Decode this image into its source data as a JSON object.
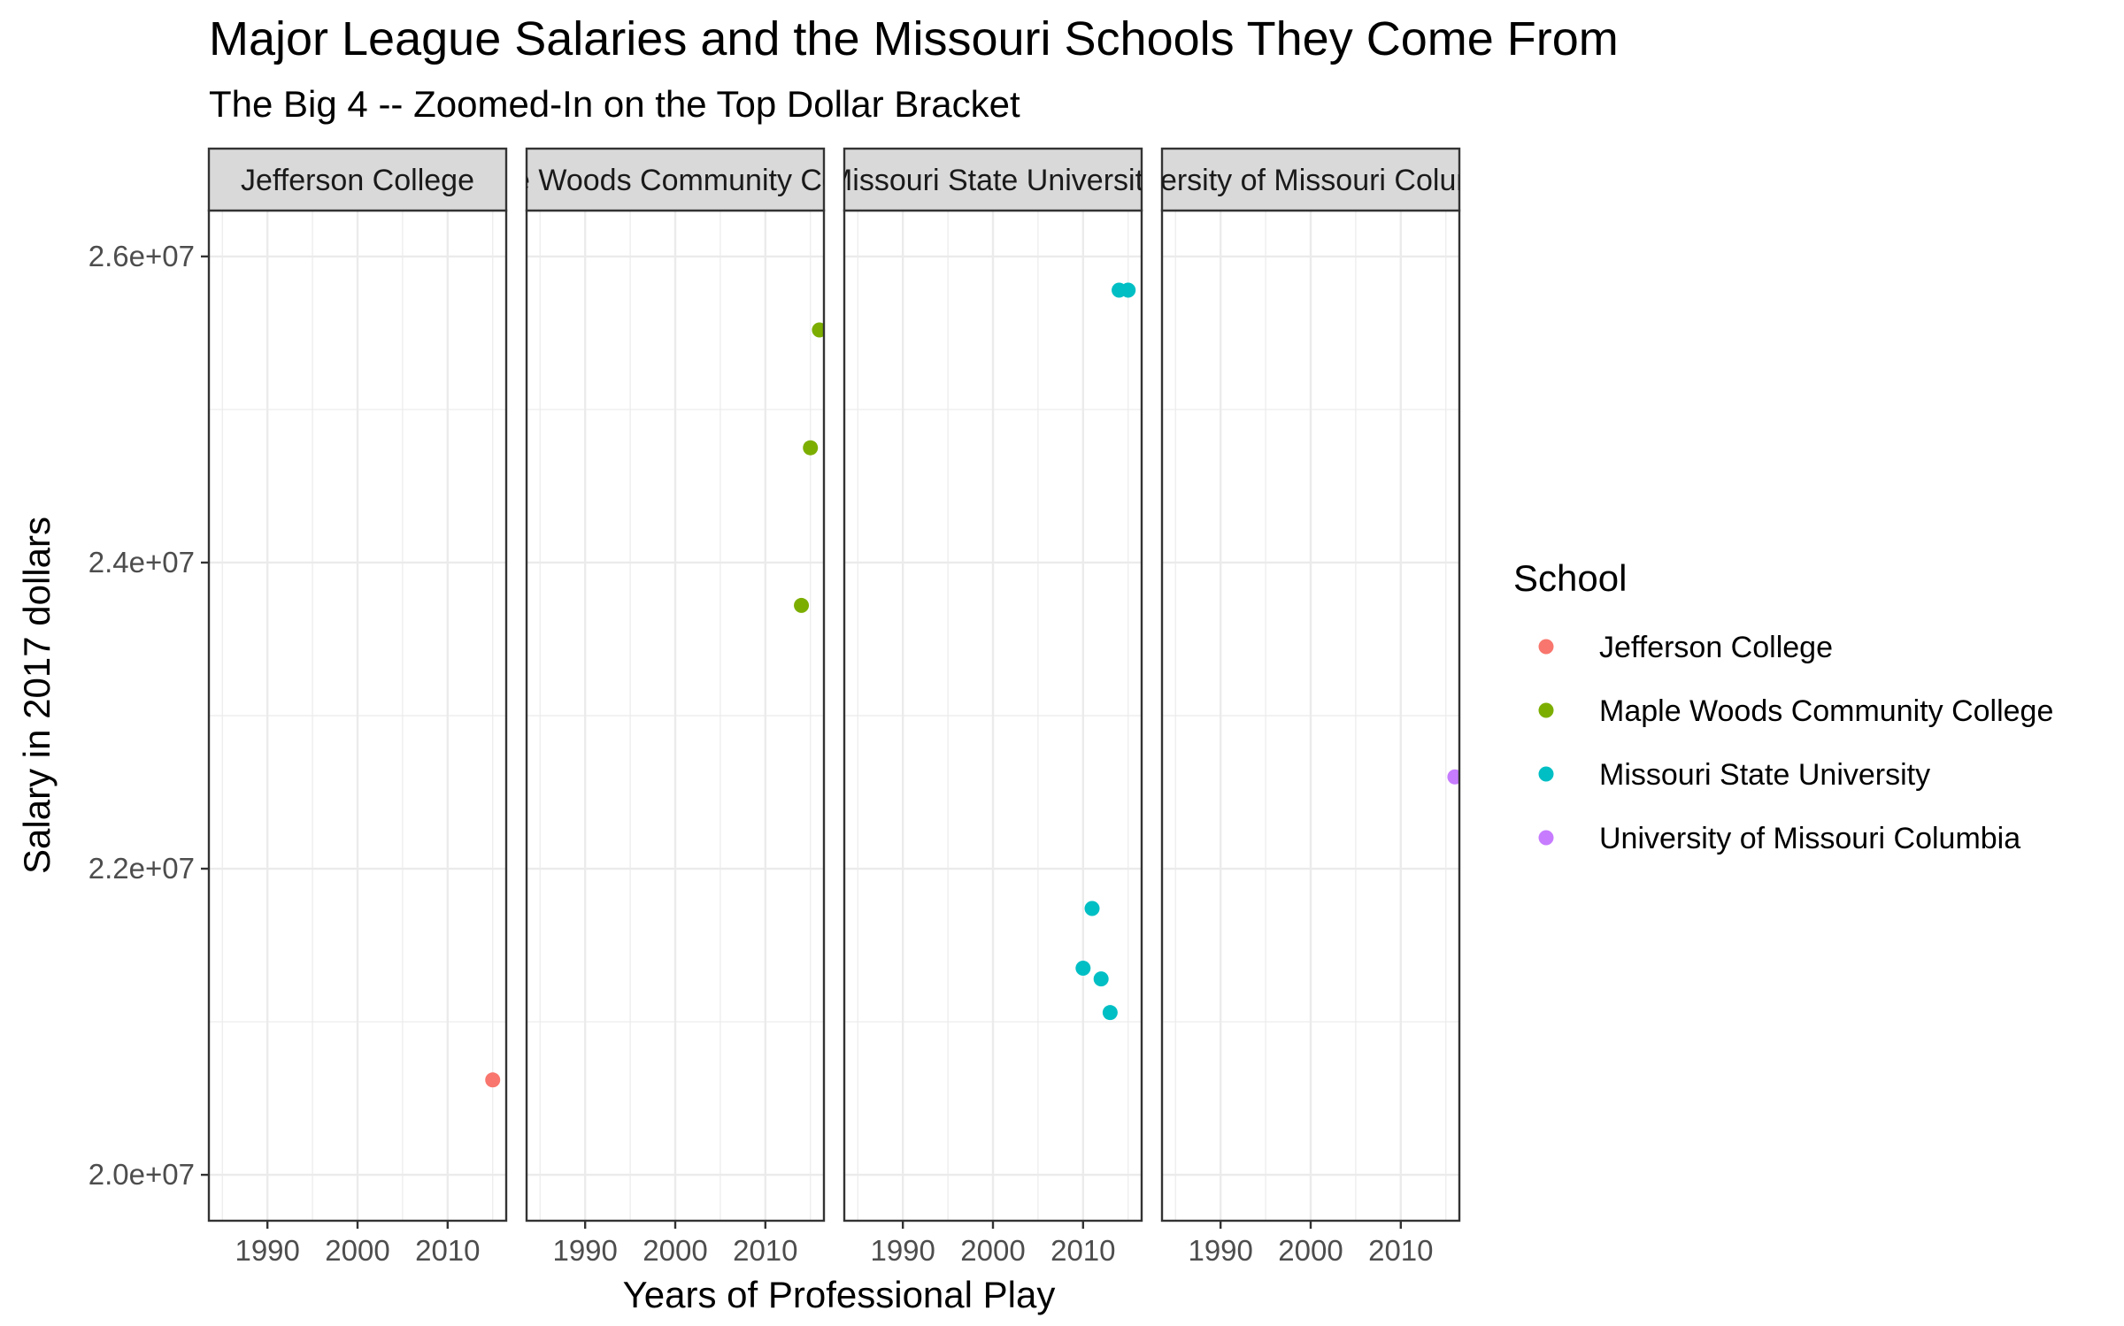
{
  "chart_data": {
    "type": "scatter",
    "title": "Major League Salaries and the Missouri Schools They Come From",
    "subtitle": "The Big 4 -- Zoomed-In on the Top Dollar Bracket",
    "xlabel": "Years of Professional Play",
    "ylabel": "Salary in 2017 dollars",
    "xlim": [
      1983.5,
      2016.5
    ],
    "ylim": [
      19700000,
      26300000
    ],
    "x_ticks": [
      1990,
      2000,
      2010
    ],
    "x_tick_labels": [
      "1990",
      "2000",
      "2010"
    ],
    "y_ticks": [
      20000000,
      22000000,
      24000000,
      26000000
    ],
    "y_tick_labels": [
      "2.0e+07",
      "2.2e+07",
      "2.4e+07",
      "2.6e+07"
    ],
    "grid": true,
    "legend": {
      "title": "School",
      "placement": "right"
    },
    "panels": [
      {
        "name": "Jefferson College",
        "strip": "Jefferson College",
        "color": "#F8766D",
        "points": [
          {
            "x": 2015,
            "y": 20620000
          }
        ]
      },
      {
        "name": "Maple Woods Community College",
        "strip": "Maple Woods Community College",
        "color": "#7CAE00",
        "points": [
          {
            "x": 2014,
            "y": 23720000
          },
          {
            "x": 2015,
            "y": 24750000
          },
          {
            "x": 2016,
            "y": 25520000
          }
        ]
      },
      {
        "name": "Missouri State University",
        "strip": "Missouri State University",
        "color": "#00BFC4",
        "points": [
          {
            "x": 2010,
            "y": 21350000
          },
          {
            "x": 2011,
            "y": 21740000
          },
          {
            "x": 2012,
            "y": 21280000
          },
          {
            "x": 2013,
            "y": 21060000
          },
          {
            "x": 2014,
            "y": 25780000
          },
          {
            "x": 2015,
            "y": 25780000
          }
        ]
      },
      {
        "name": "University of Missouri Columbia",
        "strip": "University of Missouri Columbia",
        "color": "#C77CFF",
        "points": [
          {
            "x": 2016,
            "y": 22600000
          }
        ]
      }
    ]
  }
}
